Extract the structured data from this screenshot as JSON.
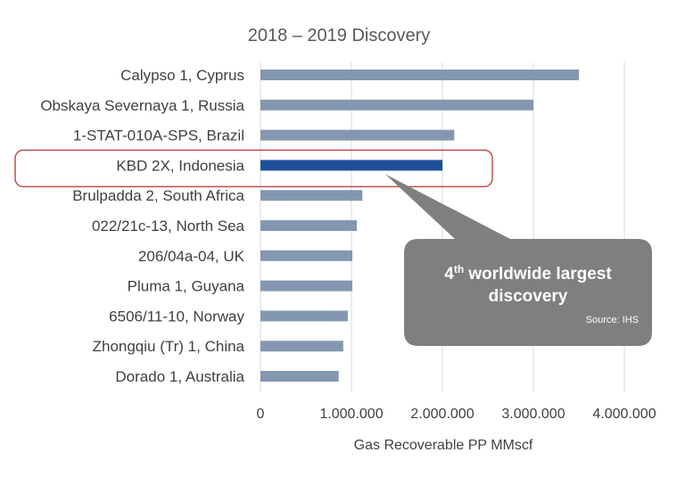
{
  "chart_data": {
    "type": "bar",
    "orientation": "horizontal",
    "title": "2018 – 2019 Discovery",
    "xlabel": "Gas Recoverable PP MMscf",
    "ylabel": "",
    "xlim": [
      0,
      4000000
    ],
    "x_ticks": [
      "0",
      "1.000.000",
      "2.000.000",
      "3.000.000",
      "4.000.000"
    ],
    "grid": "vertical",
    "categories": [
      "Calypso 1, Cyprus",
      "Obskaya Severnaya 1, Russia",
      "1-STAT-010A-SPS, Brazil",
      "KBD 2X, Indonesia",
      "Brulpadda 2, South Africa",
      "022/21c-13, North Sea",
      "206/04a-04, UK",
      "Pluma 1, Guyana",
      "6506/11-10, Norway",
      "Zhongqiu (Tr) 1, China",
      "Dorado 1, Australia"
    ],
    "values": [
      3500000,
      3000000,
      2130000,
      2000000,
      1120000,
      1060000,
      1010000,
      1010000,
      960000,
      910000,
      860000
    ],
    "highlight_index": 3,
    "colors": {
      "bar": "#8497b0",
      "highlight": "#1f4e99",
      "highlight_box": "#c0504d",
      "grid": "#d9d9d9"
    }
  },
  "callout": {
    "main_line1": "worldwide largest",
    "main_line2": "discovery",
    "ordinal_number": "4",
    "ordinal_suffix": "th",
    "source": "Source: IHS",
    "fill": "#7f7f7f"
  }
}
